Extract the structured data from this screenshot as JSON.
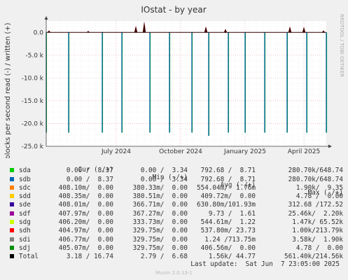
{
  "chart_data": {
    "type": "line",
    "title": "IOstat - by year",
    "ylabel": "blocks per second read (-) / written (+)",
    "side_text": "RRDTOOL / TOBI OETIKER",
    "ylim": [
      -25000,
      2500
    ],
    "yticks": [
      {
        "value": 0,
        "label": "0.0"
      },
      {
        "value": -5000,
        "label": "-5.0 k"
      },
      {
        "value": -10000,
        "label": "-10.0 k"
      },
      {
        "value": -15000,
        "label": "-15.0 k"
      },
      {
        "value": -20000,
        "label": "-20.0 k"
      },
      {
        "value": -25000,
        "label": "-25.0 k"
      }
    ],
    "xticks": [
      {
        "label": "July 2024",
        "pos": 0.25
      },
      {
        "label": "October 2024",
        "pos": 0.48
      },
      {
        "label": "January 2025",
        "pos": 0.71
      },
      {
        "label": "April 2025",
        "pos": 0.92
      }
    ],
    "read_spikes": [
      {
        "x": 0.0,
        "value": -22000
      },
      {
        "x": 0.08,
        "value": -22000
      },
      {
        "x": 0.2,
        "value": -22000
      },
      {
        "x": 0.27,
        "value": -22000
      },
      {
        "x": 0.37,
        "value": -22000
      },
      {
        "x": 0.44,
        "value": -22000
      },
      {
        "x": 0.52,
        "value": -22000
      },
      {
        "x": 0.58,
        "value": -22700
      },
      {
        "x": 0.65,
        "value": -22000
      },
      {
        "x": 0.71,
        "value": -22000
      },
      {
        "x": 0.78,
        "value": -22000
      },
      {
        "x": 0.86,
        "value": -22000
      },
      {
        "x": 0.93,
        "value": -22000
      },
      {
        "x": 1.0,
        "value": -22000
      }
    ],
    "write_spikes": [
      {
        "x": 0.01,
        "value": 400
      },
      {
        "x": 0.15,
        "value": 300
      },
      {
        "x": 0.32,
        "value": 1300
      },
      {
        "x": 0.35,
        "value": 2200
      },
      {
        "x": 0.57,
        "value": 1200
      },
      {
        "x": 0.64,
        "value": 700
      },
      {
        "x": 0.87,
        "value": 1200
      },
      {
        "x": 0.92,
        "value": 1100
      },
      {
        "x": 0.99,
        "value": 400
      }
    ]
  },
  "legend": {
    "headers": {
      "cur": "Cur (-/+)",
      "min": "Min (-/+)",
      "avg": "Avg (-/+)",
      "max": "Max (-/+)"
    },
    "rows": [
      {
        "name": "sda",
        "color": "#00cc00",
        "cur": "0.00 /  8.37",
        "min": "0.00 /  3.34",
        "avg": "792.68 /  8.71",
        "max": "280.70k/648.74"
      },
      {
        "name": "sdb",
        "color": "#0066b3",
        "cur": "0.00 /  8.37",
        "min": "0.00 /  3.34",
        "avg": "792.68 /  8.71",
        "max": "280.70k/648.74"
      },
      {
        "name": "sdc",
        "color": "#ff8000",
        "cur": "408.10m/  0.00",
        "min": "380.33m/  0.00",
        "avg": "554.04m/  1.76m",
        "max": "1.90k/  9.35"
      },
      {
        "name": "sdd",
        "color": "#ffcc00",
        "cur": "408.35m/  0.00",
        "min": "380.51m/  0.00",
        "avg": "409.72m/  0.00",
        "max": "4.78 /  0.00"
      },
      {
        "name": "sde",
        "color": "#330099",
        "cur": "408.01m/  0.00",
        "min": "366.71m/  0.00",
        "avg": "630.80m/101.93m",
        "max": "312.68 /172.52"
      },
      {
        "name": "sdf",
        "color": "#990099",
        "cur": "407.97m/  0.00",
        "min": "367.27m/  0.00",
        "avg": "9.73 /  1.61",
        "max": "25.46k/  2.20k"
      },
      {
        "name": "sdg",
        "color": "#ccff00",
        "cur": "406.20m/  0.00",
        "min": "333.73m/  0.00",
        "avg": "544.61m/  1.22",
        "max": "1.47k/ 65.52k"
      },
      {
        "name": "sdh",
        "color": "#ff0000",
        "cur": "404.97m/  0.00",
        "min": "329.75m/  0.00",
        "avg": "537.80m/ 23.73",
        "max": "1.00k/213.79k"
      },
      {
        "name": "sdi",
        "color": "#808080",
        "cur": "406.77m/  0.00",
        "min": "329.75m/  0.00",
        "avg": "1.24 /713.75m",
        "max": "3.58k/  1.90k"
      },
      {
        "name": "sdj",
        "color": "#008f00",
        "cur": "405.07m/  0.00",
        "min": "329.75m/  0.00",
        "avg": "406.56m/  0.00",
        "max": "4.78 /  0.00"
      },
      {
        "name": "Total",
        "color": "#000000",
        "cur": "3.18 / 16.74",
        "min": "2.79 /  6.68",
        "avg": "1.56k/ 44.77",
        "max": "561.40k/214.56k"
      }
    ]
  },
  "last_update": "Last update:  Sat Jun  7 23:05:00 2025",
  "footer": "Munin 2.0.33-1"
}
